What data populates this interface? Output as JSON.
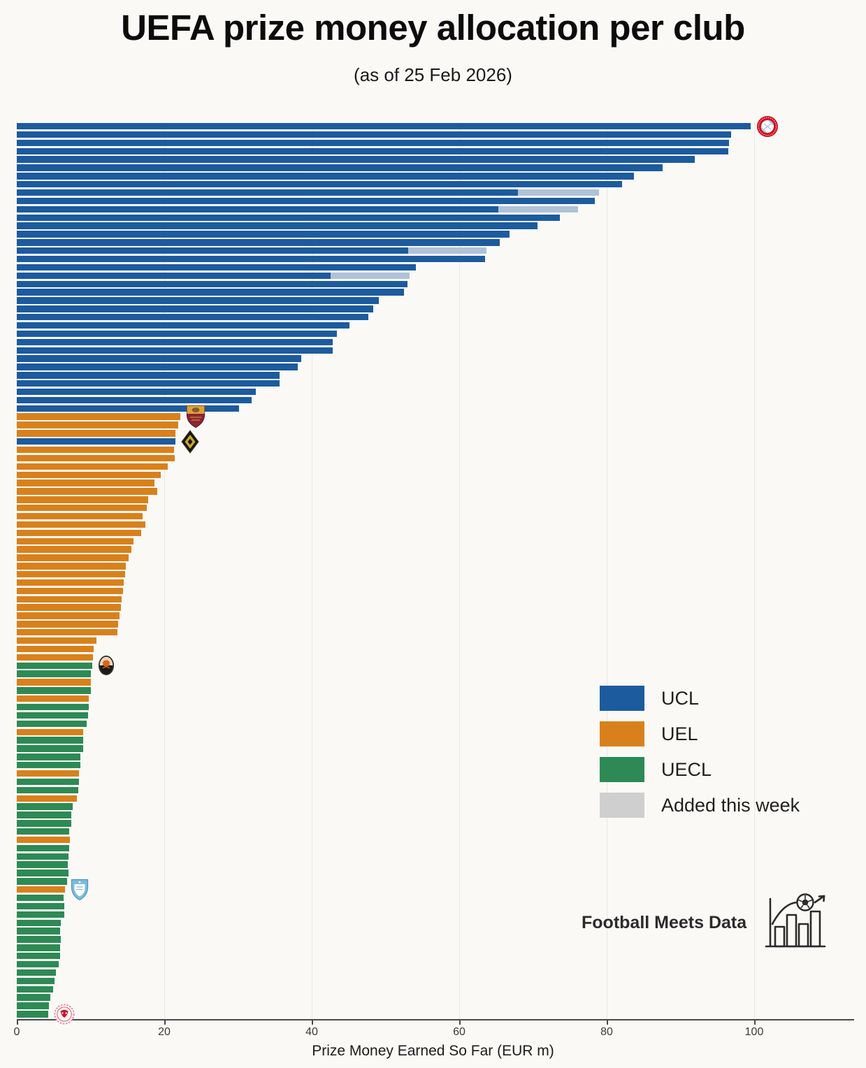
{
  "title": "UEFA prize money allocation per club",
  "subtitle": "(as of 25 Feb 2026)",
  "footer": {
    "brand": "Football Meets Data"
  },
  "legend": {
    "items": [
      {
        "label": "UCL",
        "color": "#1c5b9e"
      },
      {
        "label": "UEL",
        "color": "#d8811c"
      },
      {
        "label": "UECL",
        "color": "#2d8a55"
      },
      {
        "label": "Added this week",
        "color": "#cfcfcf"
      }
    ]
  },
  "chart_data": {
    "type": "bar",
    "orientation": "horizontal",
    "title": "UEFA prize money allocation per club",
    "subtitle": "(as of 25 Feb 2026)",
    "xlabel": "Prize Money Earned So Far (EUR m)",
    "xticks": [
      0,
      20,
      40,
      60,
      80,
      100
    ],
    "xlim": [
      0,
      113
    ],
    "grid": "vertical-dotted",
    "legend_position": "center-right",
    "series_colors": {
      "UCL": "#1c5b9e",
      "UEL": "#d8811c",
      "UECL": "#2d8a55",
      "added_this_week": "#afc2d8"
    },
    "club_logo_markers": [
      "bayern",
      "roma",
      "diamond",
      "shakhtar",
      "malmo",
      "redimps"
    ],
    "bars": [
      {
        "c": "UCL",
        "v": 99.5,
        "logo": "bayern"
      },
      {
        "c": "UCL",
        "v": 96.9
      },
      {
        "c": "UCL",
        "v": 96.6
      },
      {
        "c": "UCL",
        "v": 96.5
      },
      {
        "c": "UCL",
        "v": 91.9
      },
      {
        "c": "UCL",
        "v": 87.6
      },
      {
        "c": "UCL",
        "v": 83.7
      },
      {
        "c": "UCL",
        "v": 82.1
      },
      {
        "c": "UCL",
        "v": 79.0,
        "prev": 68.0
      },
      {
        "c": "UCL",
        "v": 78.4
      },
      {
        "c": "UCL",
        "v": 76.1,
        "prev": 65.3
      },
      {
        "c": "UCL",
        "v": 73.6
      },
      {
        "c": "UCL",
        "v": 70.6
      },
      {
        "c": "UCL",
        "v": 66.8
      },
      {
        "c": "UCL",
        "v": 65.5
      },
      {
        "c": "UCL",
        "v": 63.7,
        "prev": 53.1
      },
      {
        "c": "UCL",
        "v": 63.5
      },
      {
        "c": "UCL",
        "v": 54.1
      },
      {
        "c": "UCL",
        "v": 53.3,
        "prev": 42.6
      },
      {
        "c": "UCL",
        "v": 53.0
      },
      {
        "c": "UCL",
        "v": 52.5
      },
      {
        "c": "UCL",
        "v": 49.1
      },
      {
        "c": "UCL",
        "v": 48.3
      },
      {
        "c": "UCL",
        "v": 47.7
      },
      {
        "c": "UCL",
        "v": 45.1
      },
      {
        "c": "UCL",
        "v": 43.4
      },
      {
        "c": "UCL",
        "v": 42.8
      },
      {
        "c": "UCL",
        "v": 42.8
      },
      {
        "c": "UCL",
        "v": 38.6
      },
      {
        "c": "UCL",
        "v": 38.1
      },
      {
        "c": "UCL",
        "v": 35.6
      },
      {
        "c": "UCL",
        "v": 35.6
      },
      {
        "c": "UCL",
        "v": 32.4
      },
      {
        "c": "UCL",
        "v": 31.8
      },
      {
        "c": "UCL",
        "v": 30.1
      },
      {
        "c": "UEL",
        "v": 22.2,
        "logo": "roma"
      },
      {
        "c": "UEL",
        "v": 21.9
      },
      {
        "c": "UEL",
        "v": 21.5
      },
      {
        "c": "UCL",
        "v": 21.5,
        "logo": "diamond"
      },
      {
        "c": "UEL",
        "v": 21.3
      },
      {
        "c": "UEL",
        "v": 21.4
      },
      {
        "c": "UEL",
        "v": 20.5
      },
      {
        "c": "UEL",
        "v": 19.5
      },
      {
        "c": "UEL",
        "v": 18.7
      },
      {
        "c": "UEL",
        "v": 19.0
      },
      {
        "c": "UEL",
        "v": 17.8
      },
      {
        "c": "UEL",
        "v": 17.6
      },
      {
        "c": "UEL",
        "v": 17.1
      },
      {
        "c": "UEL",
        "v": 17.4
      },
      {
        "c": "UEL",
        "v": 16.9
      },
      {
        "c": "UEL",
        "v": 15.8
      },
      {
        "c": "UEL",
        "v": 15.5
      },
      {
        "c": "UEL",
        "v": 15.2
      },
      {
        "c": "UEL",
        "v": 14.8
      },
      {
        "c": "UEL",
        "v": 14.7
      },
      {
        "c": "UEL",
        "v": 14.5
      },
      {
        "c": "UEL",
        "v": 14.4
      },
      {
        "c": "UEL",
        "v": 14.2
      },
      {
        "c": "UEL",
        "v": 14.1
      },
      {
        "c": "UEL",
        "v": 13.9
      },
      {
        "c": "UEL",
        "v": 13.7
      },
      {
        "c": "UEL",
        "v": 13.6
      },
      {
        "c": "UEL",
        "v": 10.8
      },
      {
        "c": "UEL",
        "v": 10.4
      },
      {
        "c": "UEL",
        "v": 10.3
      },
      {
        "c": "UECL",
        "v": 10.2,
        "logo": "shakhtar"
      },
      {
        "c": "UECL",
        "v": 10.0
      },
      {
        "c": "UEL",
        "v": 10.0
      },
      {
        "c": "UECL",
        "v": 10.0
      },
      {
        "c": "UEL",
        "v": 9.8
      },
      {
        "c": "UECL",
        "v": 9.8
      },
      {
        "c": "UECL",
        "v": 9.7
      },
      {
        "c": "UECL",
        "v": 9.5
      },
      {
        "c": "UEL",
        "v": 9.0
      },
      {
        "c": "UECL",
        "v": 9.0
      },
      {
        "c": "UECL",
        "v": 9.0
      },
      {
        "c": "UECL",
        "v": 8.6
      },
      {
        "c": "UECL",
        "v": 8.6
      },
      {
        "c": "UEL",
        "v": 8.4
      },
      {
        "c": "UECL",
        "v": 8.4
      },
      {
        "c": "UECL",
        "v": 8.3
      },
      {
        "c": "UEL",
        "v": 8.1
      },
      {
        "c": "UECL",
        "v": 7.6
      },
      {
        "c": "UECL",
        "v": 7.4
      },
      {
        "c": "UECL",
        "v": 7.4
      },
      {
        "c": "UECL",
        "v": 7.1
      },
      {
        "c": "UEL",
        "v": 7.2
      },
      {
        "c": "UECL",
        "v": 7.1
      },
      {
        "c": "UECL",
        "v": 7.0
      },
      {
        "c": "UECL",
        "v": 6.9
      },
      {
        "c": "UECL",
        "v": 7.0
      },
      {
        "c": "UECL",
        "v": 6.8
      },
      {
        "c": "UEL",
        "v": 6.5,
        "logo": "malmo"
      },
      {
        "c": "UECL",
        "v": 6.3
      },
      {
        "c": "UECL",
        "v": 6.4
      },
      {
        "c": "UECL",
        "v": 6.4
      },
      {
        "c": "UECL",
        "v": 6.0
      },
      {
        "c": "UECL",
        "v": 5.9
      },
      {
        "c": "UECL",
        "v": 6.0
      },
      {
        "c": "UECL",
        "v": 5.9
      },
      {
        "c": "UECL",
        "v": 5.9
      },
      {
        "c": "UECL",
        "v": 5.7
      },
      {
        "c": "UECL",
        "v": 5.3
      },
      {
        "c": "UECL",
        "v": 5.1
      },
      {
        "c": "UECL",
        "v": 4.9
      },
      {
        "c": "UECL",
        "v": 4.5
      },
      {
        "c": "UECL",
        "v": 4.4
      },
      {
        "c": "UECL",
        "v": 4.3,
        "logo": "redimps"
      }
    ]
  }
}
